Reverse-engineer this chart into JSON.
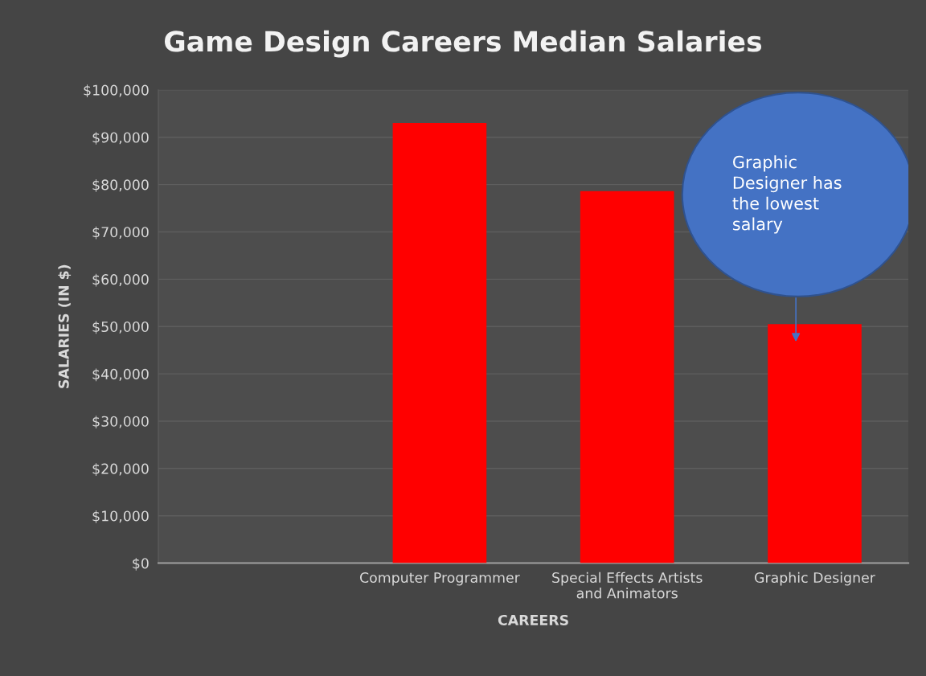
{
  "chart_data": {
    "type": "bar",
    "title": "Game Design Careers Median Salaries",
    "xlabel": "CAREERS",
    "ylabel": "SALARIES (IN $)",
    "categories": [
      null,
      "Computer Programmer",
      "Special Effects Artists\nand Animators",
      "Graphic Designer"
    ],
    "values": [
      null,
      93000,
      78600,
      50500
    ],
    "color": "#ff0000",
    "ylim": [
      0,
      100000
    ],
    "yticks": [
      {
        "value": 0,
        "label": "$0"
      },
      {
        "value": 10000,
        "label": "$10,000"
      },
      {
        "value": 20000,
        "label": "$20,000"
      },
      {
        "value": 30000,
        "label": "$30,000"
      },
      {
        "value": 40000,
        "label": "$40,000"
      },
      {
        "value": 50000,
        "label": "$50,000"
      },
      {
        "value": 60000,
        "label": "$60,000"
      },
      {
        "value": 70000,
        "label": "$70,000"
      },
      {
        "value": 80000,
        "label": "$80,000"
      },
      {
        "value": 90000,
        "label": "$90,000"
      },
      {
        "value": 100000,
        "label": "$100,000"
      }
    ],
    "grid": "y",
    "legend": false,
    "annotations": [
      "Graphic\nDesigner has\nthe lowest\nsalary"
    ]
  }
}
